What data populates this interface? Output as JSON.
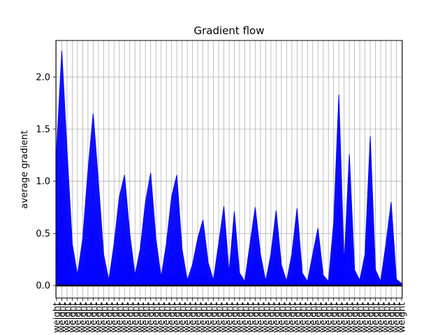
{
  "chart_data": {
    "type": "area",
    "title": "Gradient flow",
    "xlabel": "",
    "ylabel": "average gradient",
    "ylim": [
      -0.12,
      2.35
    ],
    "yticks": [
      0.0,
      0.5,
      1.0,
      1.5,
      2.0
    ],
    "ytick_labels": [
      "0.0",
      "0.5",
      "1.0",
      "1.5",
      "2.0"
    ],
    "grid": true,
    "series_color": "#0000ff",
    "zero_line_color": "#000000",
    "x_tick_label": "weight",
    "x_tick_count": 67,
    "values": [
      1.3,
      2.25,
      1.3,
      0.4,
      0.1,
      0.45,
      1.1,
      1.65,
      1.0,
      0.3,
      0.05,
      0.4,
      0.85,
      1.06,
      0.5,
      0.1,
      0.35,
      0.8,
      1.08,
      0.45,
      0.08,
      0.4,
      0.85,
      1.06,
      0.35,
      0.05,
      0.2,
      0.45,
      0.63,
      0.22,
      0.05,
      0.4,
      0.76,
      0.12,
      0.71,
      0.12,
      0.04,
      0.4,
      0.75,
      0.3,
      0.04,
      0.3,
      0.72,
      0.2,
      0.04,
      0.3,
      0.74,
      0.12,
      0.04,
      0.3,
      0.55,
      0.1,
      0.04,
      0.6,
      1.83,
      0.2,
      1.26,
      0.15,
      0.05,
      0.3,
      1.43,
      0.15,
      0.04,
      0.4,
      0.8,
      0.06,
      0.02
    ]
  }
}
